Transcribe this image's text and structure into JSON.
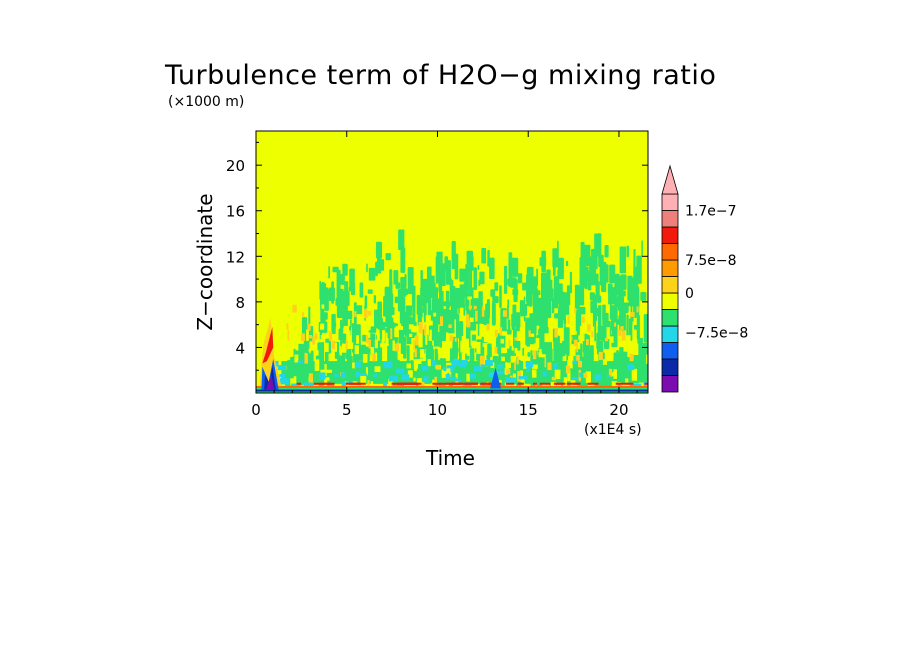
{
  "chart_data": {
    "type": "heatmap",
    "title": "Turbulence term of H2O−g mixing ratio",
    "xlabel": "Time",
    "ylabel": "Z−coordinate",
    "x_unit": "(x1E4 s)",
    "y_unit": "(×1000 m)",
    "xlim": [
      0,
      21.6
    ],
    "ylim": [
      0,
      23
    ],
    "x_ticks": [
      0,
      5,
      10,
      15,
      20
    ],
    "x_tick_labels": [
      "0",
      "5",
      "10",
      "15",
      "20"
    ],
    "y_ticks": [
      4,
      8,
      12,
      16,
      20
    ],
    "y_tick_labels": [
      "4",
      "8",
      "12",
      "16",
      "20"
    ],
    "colorbar": {
      "colors": [
        "#7b0db0",
        "#0a2aa8",
        "#0e5ef0",
        "#22d8e8",
        "#2ee06e",
        "#eeff00",
        "#ffd21a",
        "#ff9a00",
        "#ff6a00",
        "#f21a0a",
        "#ee7f7a",
        "#ffb0b5"
      ],
      "labels": [
        "1.7e−7",
        "7.5e−8",
        "0",
        "−7.5e−8"
      ],
      "label_levels": [
        1.7e-07,
        7.5e-08,
        0,
        -7.5e-08
      ],
      "extend_top": true
    },
    "background_level": 0,
    "regions": [
      {
        "description": "near-zero positive background",
        "level": 0,
        "color": "#eeff00"
      },
      {
        "description": "small negative patches",
        "z_range": [
          0.5,
          13.5
        ],
        "x_range": [
          1.5,
          21.6
        ],
        "color": "#2ee06e"
      },
      {
        "description": "surface positive layer",
        "z_range": [
          0,
          0.6
        ],
        "color": "#ff6a00"
      },
      {
        "description": "strong negative near origin",
        "x_range": [
          0.3,
          1.3
        ],
        "z_range": [
          0,
          3
        ],
        "color": "#0a2aa8"
      },
      {
        "description": "strong positive near origin",
        "x_range": [
          0.3,
          1.3
        ],
        "z_range": [
          2.5,
          6.5
        ],
        "color": "#f21a0a"
      }
    ]
  }
}
